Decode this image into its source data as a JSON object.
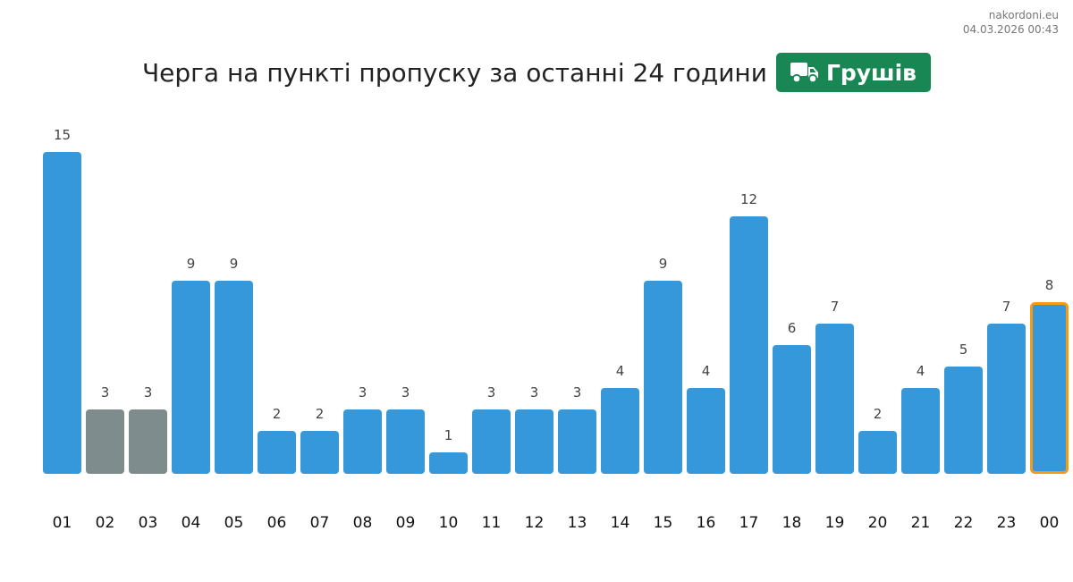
{
  "site": {
    "name": "nakordoni.eu",
    "timestamp": "04.03.2026 00:43"
  },
  "header": {
    "title": "Черга на пункті пропуску за останні 24 години",
    "checkpoint_name": "Грушів",
    "checkpoint_icon": "truck-icon"
  },
  "colors": {
    "normal": "#3498db",
    "missing": "#7f8c8d",
    "current_outline": "#f39c12",
    "badge": "#198754"
  },
  "chart_data": {
    "type": "bar",
    "title": "Черга на пункті пропуску за останні 24 години",
    "categories": [
      "01",
      "02",
      "03",
      "04",
      "05",
      "06",
      "07",
      "08",
      "09",
      "10",
      "11",
      "12",
      "13",
      "14",
      "15",
      "16",
      "17",
      "18",
      "19",
      "20",
      "21",
      "22",
      "23",
      "00"
    ],
    "values": [
      15,
      3,
      3,
      9,
      9,
      2,
      2,
      3,
      3,
      1,
      3,
      3,
      3,
      4,
      9,
      4,
      12,
      6,
      7,
      2,
      4,
      5,
      7,
      8
    ],
    "grey_categories": [
      "02",
      "03"
    ],
    "highlighted_category": "00",
    "ylim": [
      0,
      15
    ],
    "grid": false,
    "legend": "none",
    "xlabel": "",
    "ylabel": ""
  }
}
